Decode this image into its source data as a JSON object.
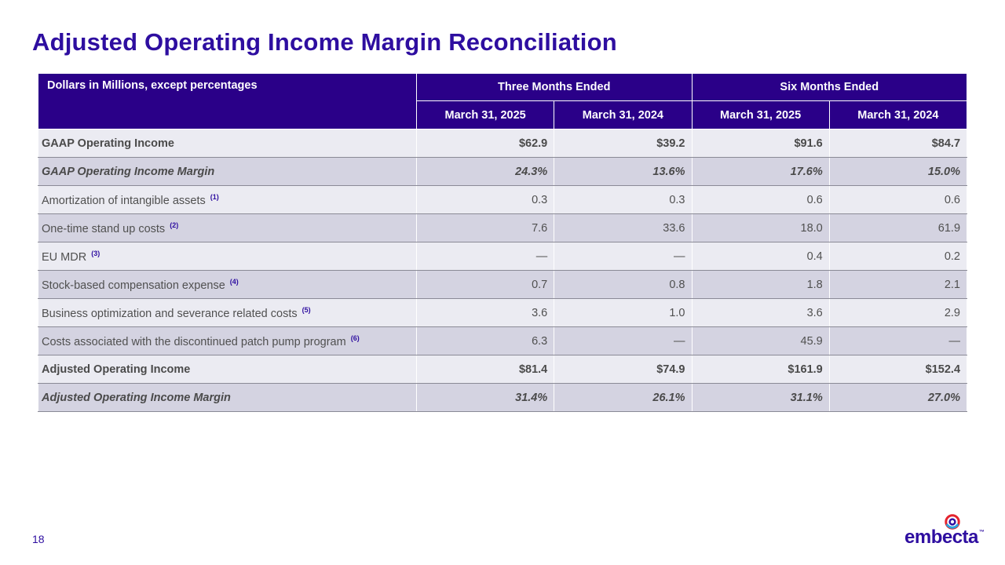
{
  "slide": {
    "title": "Adjusted Operating Income Margin Reconciliation",
    "page_number": "18"
  },
  "table": {
    "corner_header": "Dollars in Millions, except percentages",
    "group_headers": [
      "Three Months Ended",
      "Six Months Ended"
    ],
    "column_headers": [
      "March 31, 2025",
      "March 31, 2024",
      "March 31, 2025",
      "March 31, 2024"
    ],
    "rows": [
      {
        "label": "GAAP Operating Income",
        "footnote": "",
        "values": [
          "$62.9",
          "$39.2",
          "$91.6",
          "$84.7"
        ]
      },
      {
        "label": "GAAP Operating Income Margin",
        "footnote": "",
        "values": [
          "24.3%",
          "13.6%",
          "17.6%",
          "15.0%"
        ]
      },
      {
        "label": "Amortization of intangible assets",
        "footnote": "(1)",
        "values": [
          "0.3",
          "0.3",
          "0.6",
          "0.6"
        ]
      },
      {
        "label": "One-time stand up costs",
        "footnote": "(2)",
        "values": [
          "7.6",
          "33.6",
          "18.0",
          "61.9"
        ]
      },
      {
        "label": "EU MDR",
        "footnote": "(3)",
        "values": [
          "—",
          "—",
          "0.4",
          "0.2"
        ]
      },
      {
        "label": "Stock-based compensation expense",
        "footnote": "(4)",
        "values": [
          "0.7",
          "0.8",
          "1.8",
          "2.1"
        ]
      },
      {
        "label": "Business optimization and severance related costs",
        "footnote": "(5)",
        "values": [
          "3.6",
          "1.0",
          "3.6",
          "2.9"
        ]
      },
      {
        "label": "Costs associated with the discontinued patch pump program",
        "footnote": "(6)",
        "values": [
          "6.3",
          "—",
          "45.9",
          "—"
        ]
      },
      {
        "label": "Adjusted Operating Income",
        "footnote": "",
        "values": [
          "$81.4",
          "$74.9",
          "$161.9",
          "$152.4"
        ]
      },
      {
        "label": "Adjusted Operating Income Margin",
        "footnote": "",
        "values": [
          "31.4%",
          "26.1%",
          "31.1%",
          "27.0%"
        ]
      }
    ]
  },
  "logo": {
    "text": "embecta",
    "tm": "™",
    "colors": {
      "navy": "#2e0ea0",
      "red": "#e4242e",
      "blue": "#2aa4de"
    }
  },
  "colors": {
    "accent": "#2e0ea0",
    "header_bg": "#2a0088",
    "row_light": "#ebebf2",
    "row_dark": "#d4d3e1"
  }
}
